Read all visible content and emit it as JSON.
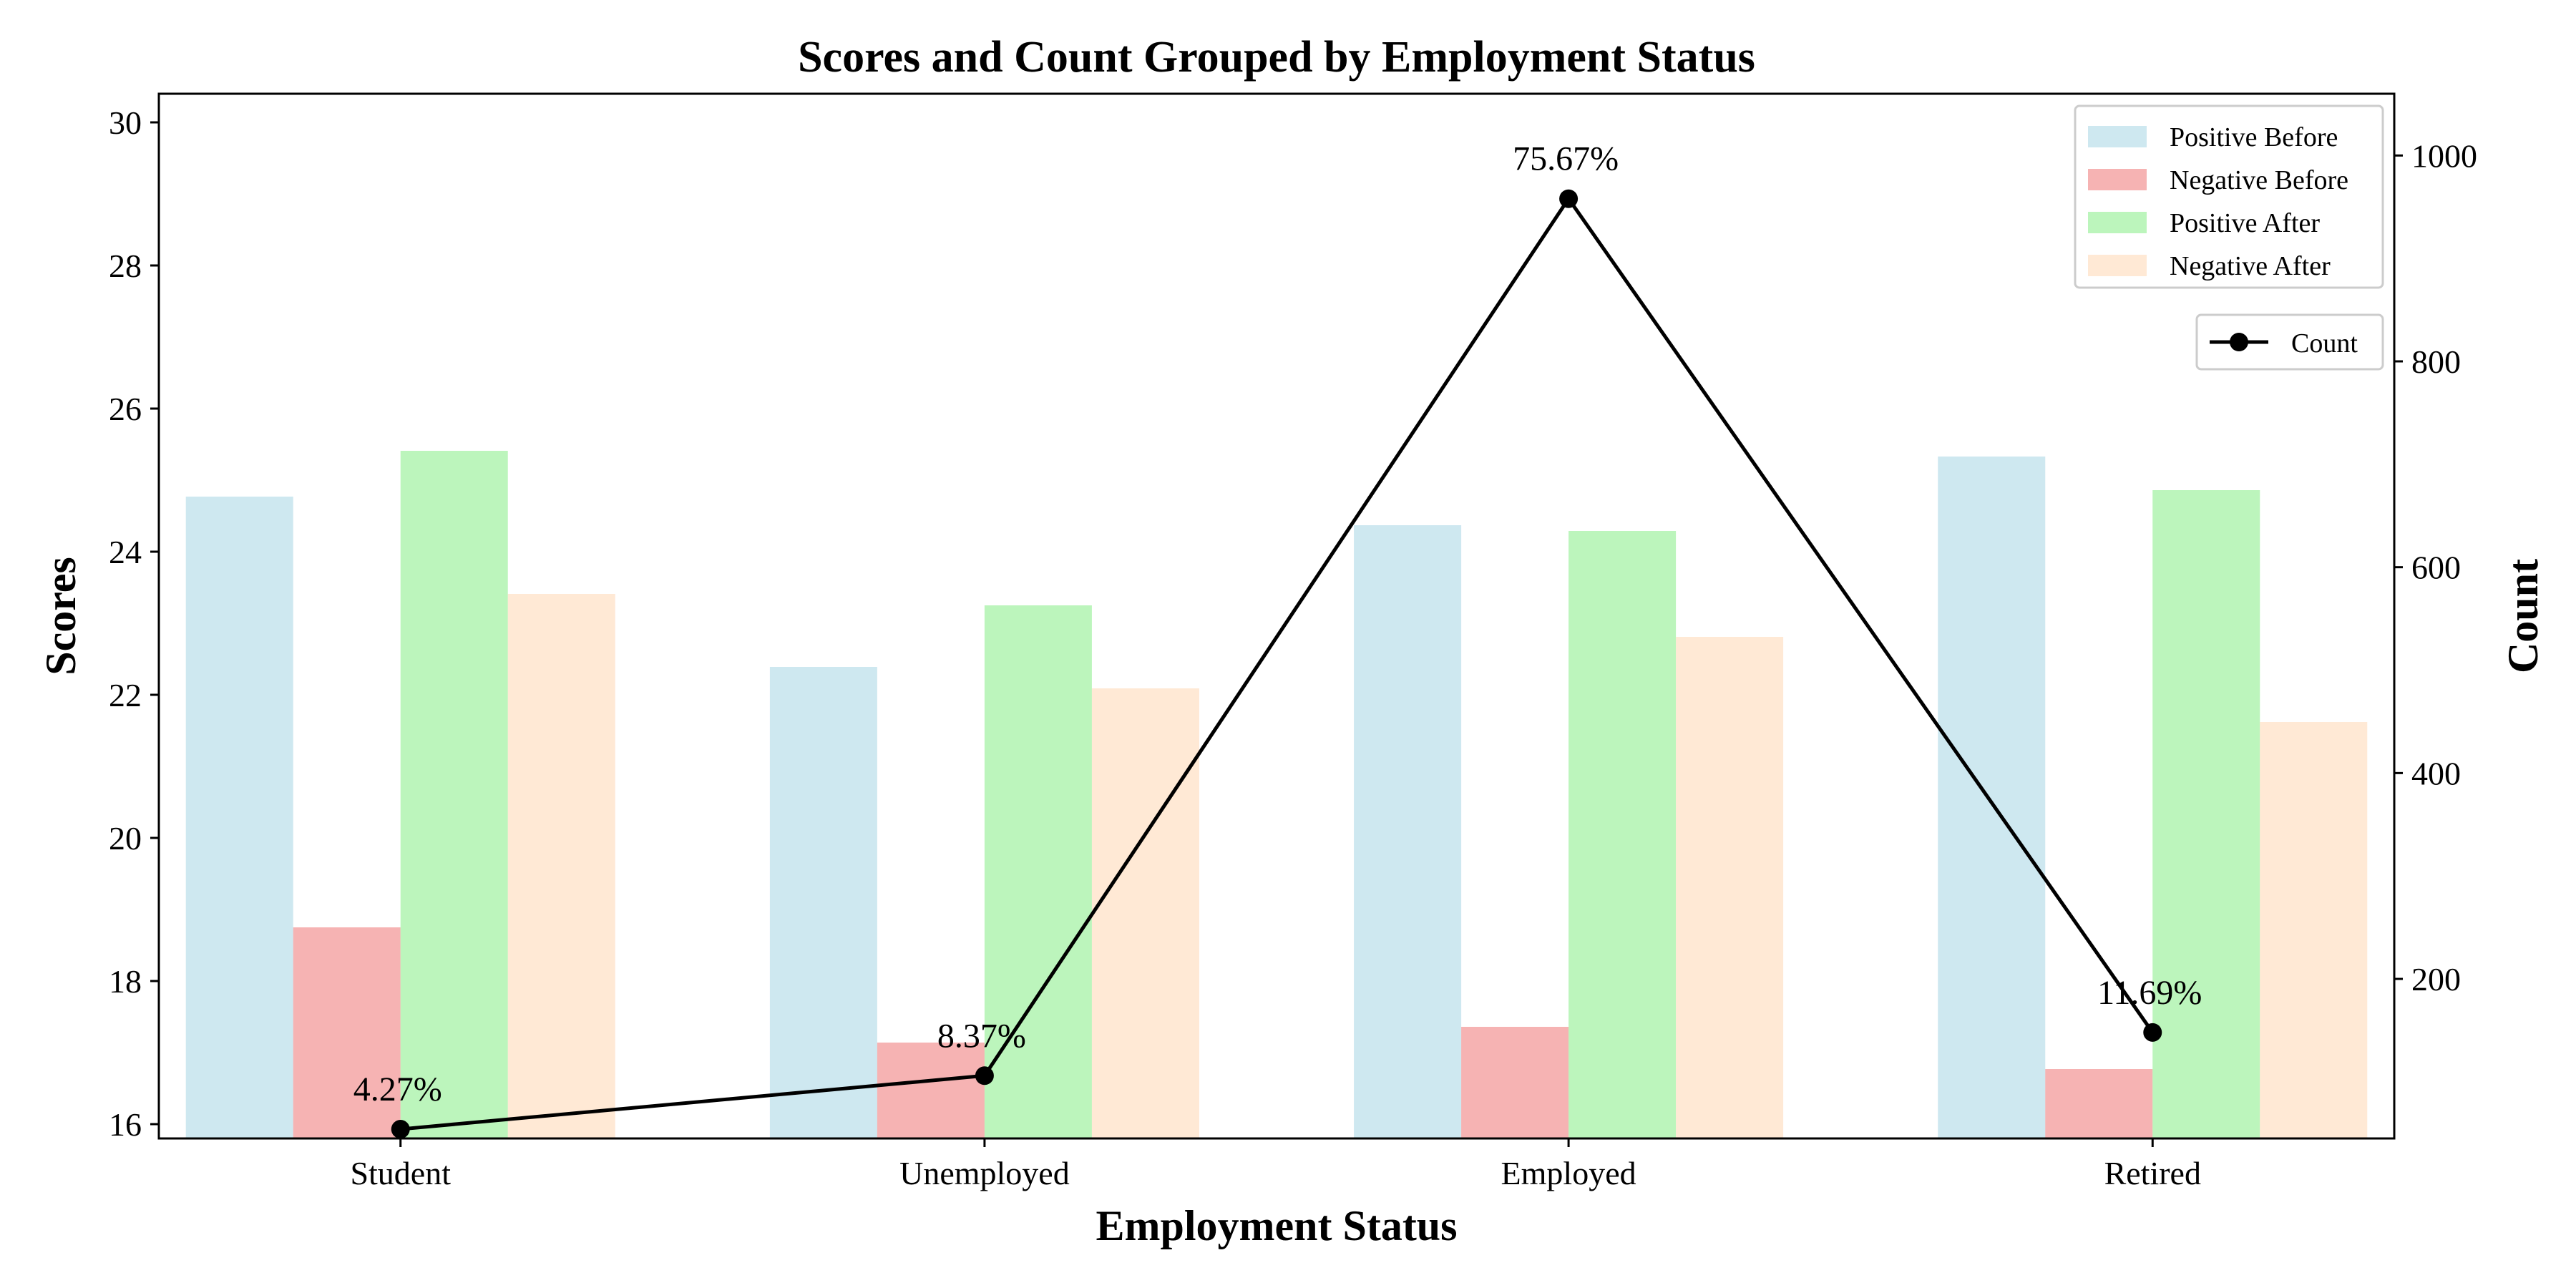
{
  "chart_data": {
    "type": "bar",
    "title": "Scores and Count Grouped by Employment Status",
    "xlabel": "Employment Status",
    "ylabel": "Scores",
    "y2label": "Count",
    "categories": [
      "Student",
      "Unemployed",
      "Employed",
      "Retired"
    ],
    "ylim": [
      15.8,
      30.4
    ],
    "y2lim": [
      45,
      1060
    ],
    "yticks": [
      16,
      18,
      20,
      22,
      24,
      26,
      28,
      30
    ],
    "y2ticks": [
      200,
      400,
      600,
      800,
      1000
    ],
    "series": [
      {
        "name": "Positive Before",
        "color": "#add8e6",
        "values": [
          24.77,
          22.39,
          24.37,
          25.33
        ]
      },
      {
        "name": "Negative Before",
        "color": "#f08080",
        "values": [
          18.75,
          17.14,
          17.36,
          16.77
        ]
      },
      {
        "name": "Positive After",
        "color": "#90ee90",
        "values": [
          25.41,
          23.25,
          24.29,
          24.86
        ]
      },
      {
        "name": "Negative After",
        "color": "#ffdab9",
        "values": [
          23.41,
          22.09,
          22.81,
          21.62
        ]
      }
    ],
    "line_series": {
      "name": "Count",
      "color": "#000000",
      "values": [
        54,
        106,
        958,
        148
      ],
      "labels": [
        "4.27%",
        "8.37%",
        "75.67%",
        "11.69%"
      ]
    },
    "legend_position": "top-right"
  }
}
